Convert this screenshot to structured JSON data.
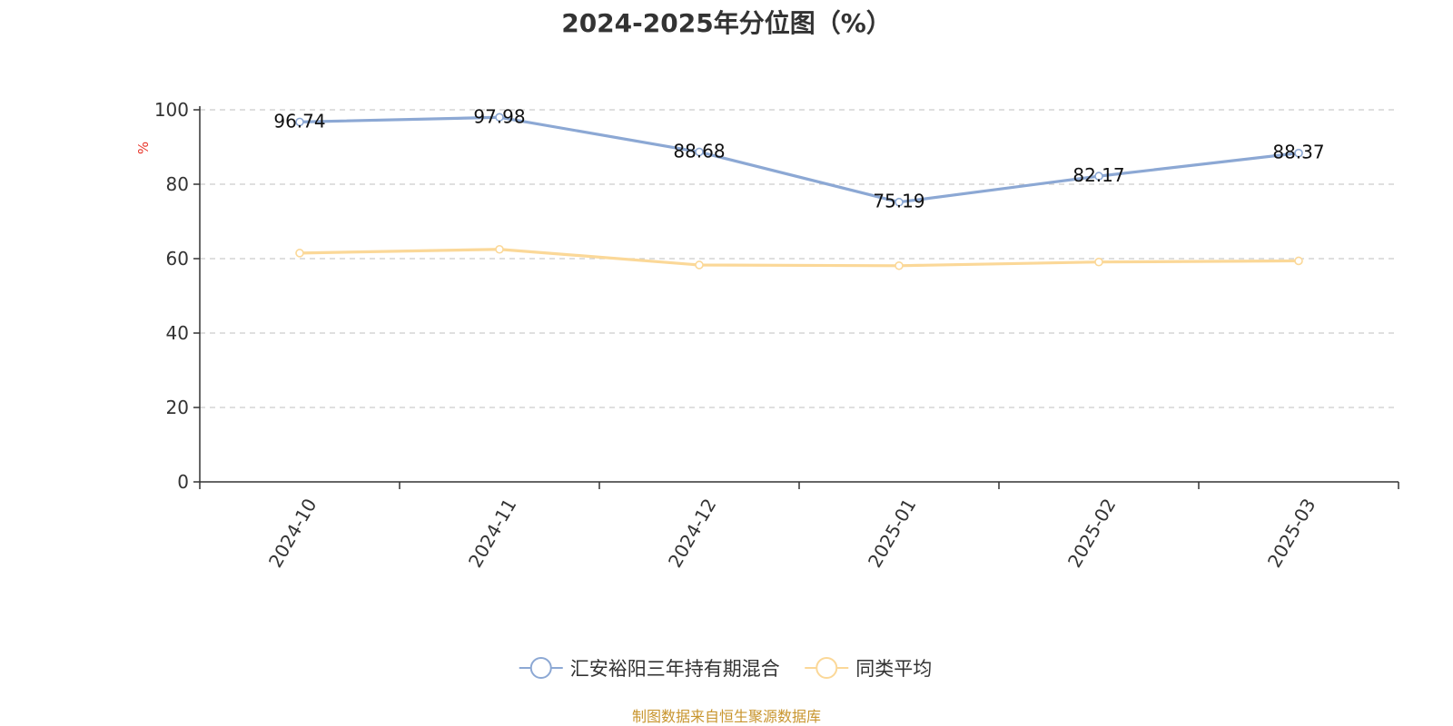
{
  "chart_data": {
    "type": "line",
    "title": "2024-2025年分位图（%）",
    "ylabel": "%",
    "xlabel": "",
    "ylim": [
      0,
      100
    ],
    "yticks": [
      0,
      20,
      40,
      60,
      80,
      100
    ],
    "categories": [
      "2024-10",
      "2024-11",
      "2024-12",
      "2025-01",
      "2025-02",
      "2025-03"
    ],
    "series": [
      {
        "name": "汇安裕阳三年持有期混合",
        "values": [
          96.74,
          97.98,
          88.68,
          75.19,
          82.17,
          88.37
        ],
        "color": "#8ca8d4",
        "show_labels": true
      },
      {
        "name": "同类平均",
        "values": [
          61.5,
          62.5,
          58.3,
          58.1,
          59.1,
          59.4
        ],
        "color": "#fbd898",
        "show_labels": false
      }
    ],
    "grid": true,
    "legend_position": "bottom-center",
    "unit_label_color": "#e8352a"
  },
  "footer": {
    "source": "制图数据来自恒生聚源数据库"
  }
}
